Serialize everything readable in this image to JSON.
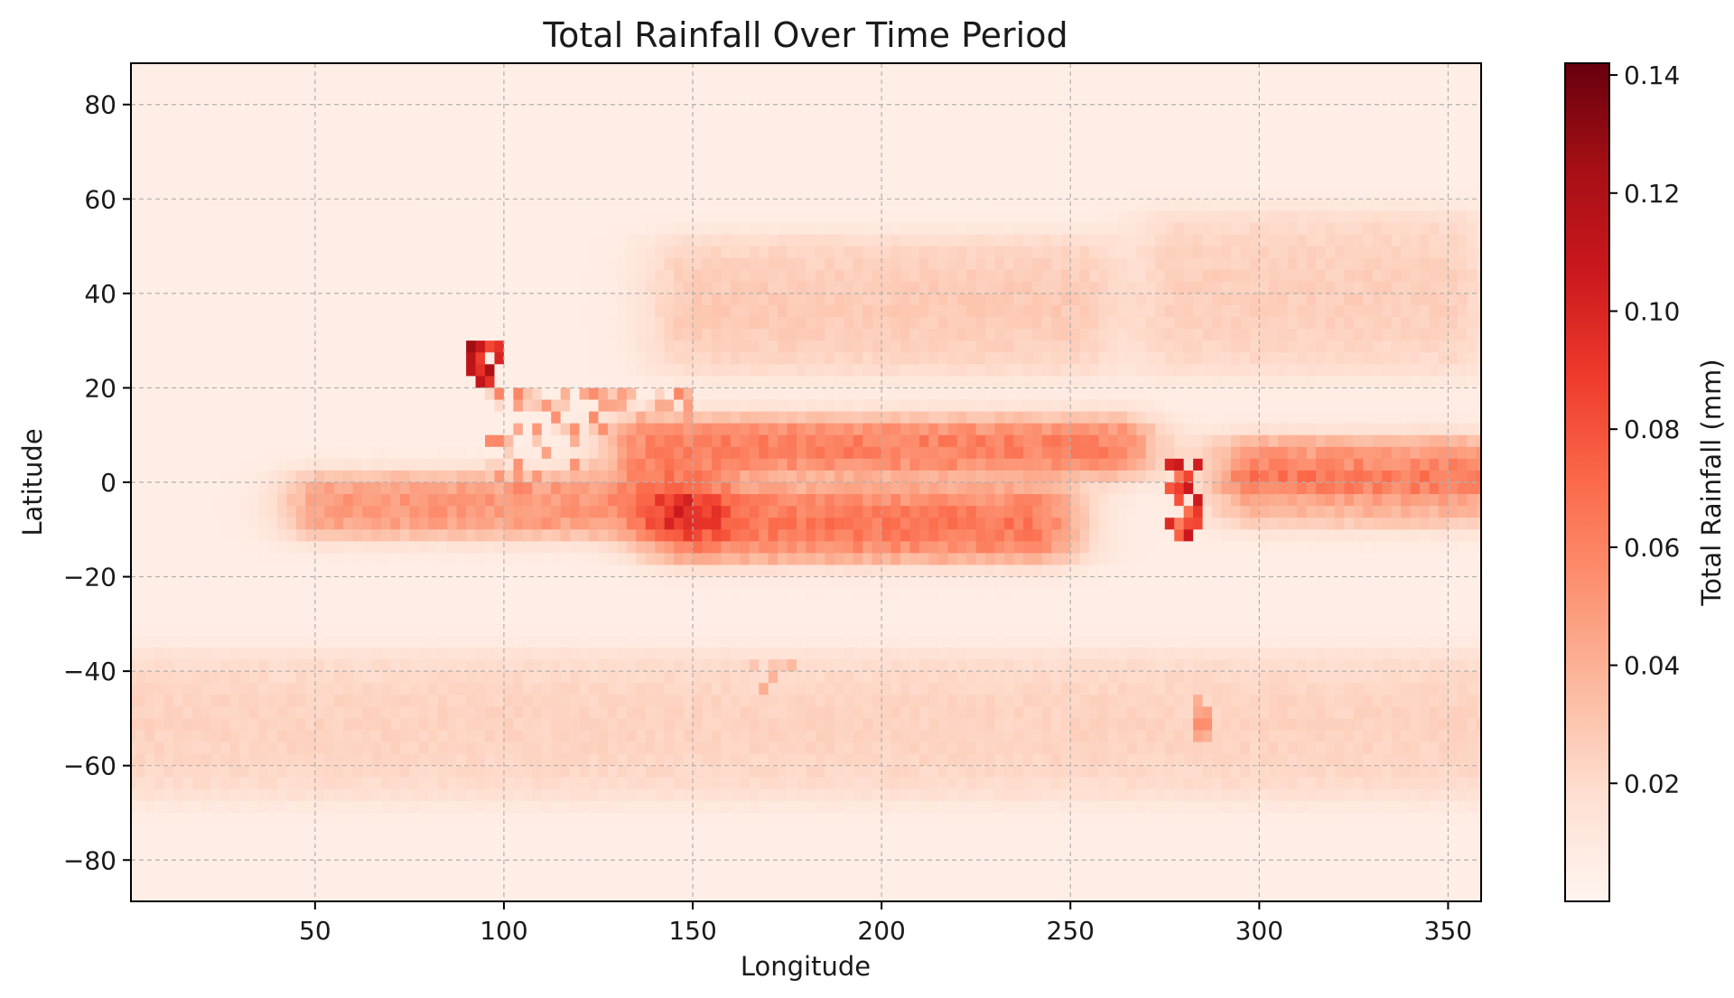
{
  "chart_data": {
    "type": "heatmap",
    "title": "Total Rainfall Over Time Period",
    "xlabel": "Longitude",
    "ylabel": "Latitude",
    "xlim": [
      1.25,
      358.75
    ],
    "ylim": [
      -88.75,
      88.75
    ],
    "xticks": [
      50,
      100,
      150,
      200,
      250,
      300,
      350
    ],
    "yticks": [
      80,
      60,
      40,
      20,
      0,
      -20,
      -40,
      -60,
      -80
    ],
    "grid": true,
    "colormap": "Reds",
    "colorbar": {
      "label": "Total Rainfall (mm)",
      "min": 0.0,
      "max": 0.142,
      "ticks": [
        0.02,
        0.04,
        0.06,
        0.08,
        0.1,
        0.12,
        0.14
      ],
      "tick_labels": [
        "0.02",
        "0.04",
        "0.06",
        "0.08",
        "0.10",
        "0.12",
        "0.14"
      ]
    },
    "grid_resolution_deg": 2.5,
    "background_value": 0.006,
    "features": [
      {
        "name": "north-pacific storm track",
        "kind": "band",
        "lon": [
          150,
          250
        ],
        "lat": [
          25,
          50
        ],
        "value": 0.022
      },
      {
        "name": "pacific ITCZ",
        "kind": "band",
        "lon": [
          140,
          260
        ],
        "lat": [
          3,
          12
        ],
        "value": 0.055
      },
      {
        "name": "south pacific convergence zone",
        "kind": "band",
        "lon": [
          150,
          240
        ],
        "lat": [
          -15,
          -3
        ],
        "value": 0.058
      },
      {
        "name": "indian ocean band",
        "kind": "band",
        "lon": [
          55,
          145
        ],
        "lat": [
          -10,
          0
        ],
        "value": 0.045
      },
      {
        "name": "atlantic ITCZ",
        "kind": "band",
        "lon": [
          300,
          355
        ],
        "lat": [
          0,
          8
        ],
        "value": 0.045
      },
      {
        "name": "south atlantic band",
        "kind": "band",
        "lon": [
          300,
          355
        ],
        "lat": [
          -8,
          0
        ],
        "value": 0.032
      },
      {
        "name": "north atlantic storm track",
        "kind": "band",
        "lon": [
          280,
          350
        ],
        "lat": [
          25,
          55
        ],
        "value": 0.02
      },
      {
        "name": "southern ocean belt",
        "kind": "band",
        "lon": [
          0,
          360
        ],
        "lat": [
          -65,
          -38
        ],
        "value": 0.018
      },
      {
        "name": "himalaya maximum",
        "kind": "peak",
        "lon": [
          90,
          100
        ],
        "lat": [
          21,
          30
        ],
        "value": 0.142
      },
      {
        "name": "maritime continent",
        "kind": "scatter",
        "lon": [
          95,
          150
        ],
        "lat": [
          -10,
          20
        ],
        "value": 0.06
      },
      {
        "name": "andes west coast",
        "kind": "peak",
        "lon": [
          274,
          285
        ],
        "lat": [
          -12,
          6
        ],
        "value": 0.11
      },
      {
        "name": "patagonia coast",
        "kind": "line",
        "lon": [
          283,
          288
        ],
        "lat": [
          -55,
          -45
        ],
        "value": 0.055
      },
      {
        "name": "new zealand",
        "kind": "line",
        "lon": [
          165,
          178
        ],
        "lat": [
          -45,
          -37
        ],
        "value": 0.05
      }
    ]
  }
}
